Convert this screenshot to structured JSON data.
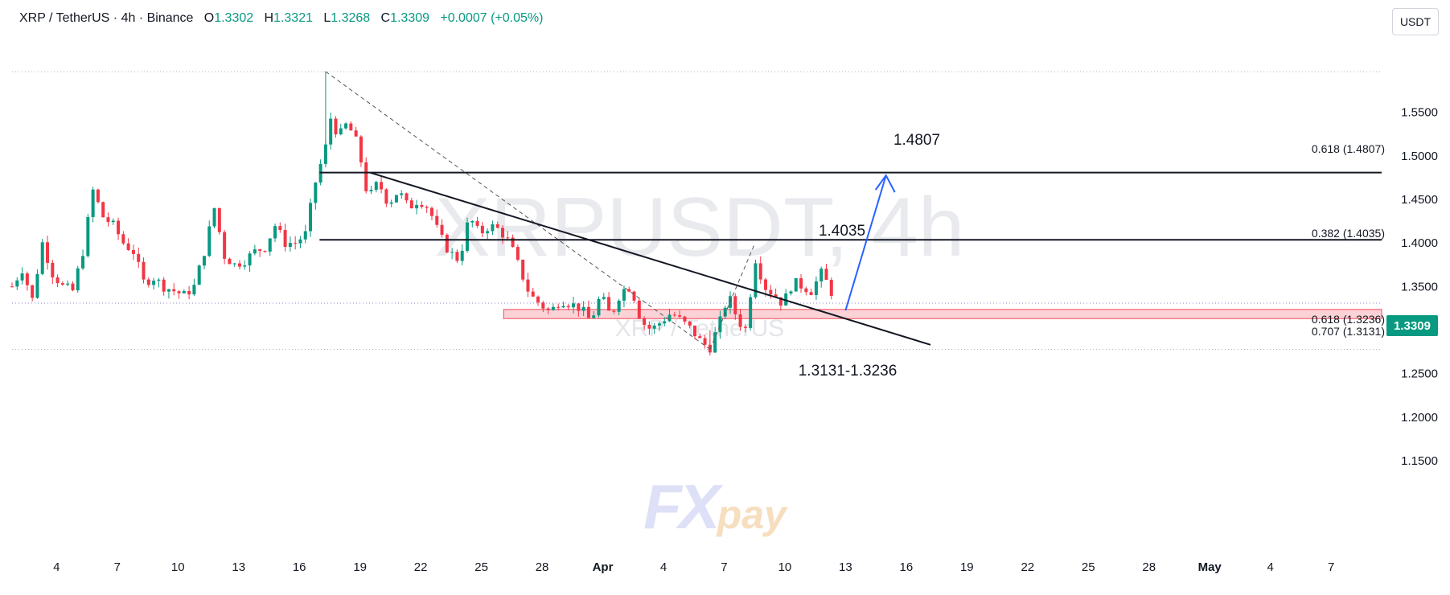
{
  "header": {
    "symbol": "XRP / TetherUS · 4h · Binance",
    "o_label": "O",
    "o_value": "1.3302",
    "h_label": "H",
    "h_value": "1.3321",
    "l_label": "L",
    "l_value": "1.3268",
    "c_label": "C",
    "c_value": "1.3309",
    "change": "+0.0007 (+0.05%)"
  },
  "currency_badge": "USDT",
  "last_price": "1.3309",
  "watermark": {
    "line1": "XRPUSDT, 4h",
    "line2": "XRP / TetherUS"
  },
  "logo": {
    "fx": "FX",
    "pay": "pay"
  },
  "colors": {
    "up": "#089981",
    "down": "#f23645",
    "zone": "#fbcfd3",
    "arrow": "#2962ff"
  },
  "chart_data": {
    "type": "candlestick",
    "y_ticks": [
      "1.1500",
      "1.2000",
      "1.2500",
      "1.3000",
      "1.3500",
      "1.4000",
      "1.4500",
      "1.5000",
      "1.5500"
    ],
    "ylim": [
      1.125,
      1.605
    ],
    "x_ticks": [
      "4",
      "7",
      "10",
      "13",
      "16",
      "19",
      "22",
      "25",
      "28",
      "Apr",
      "4",
      "7",
      "10",
      "13",
      "16",
      "19",
      "22",
      "25",
      "28",
      "May",
      "4",
      "7"
    ],
    "x_tick_days": [
      4,
      7,
      10,
      13,
      16,
      19,
      22,
      25,
      28,
      31,
      34,
      37,
      40,
      43,
      46,
      49,
      52,
      55,
      58,
      61,
      64,
      67
    ],
    "x_start_day": 1.8,
    "x_end_day": 69.5,
    "guide_lines": [
      1.3309,
      1.2778,
      1.5966
    ],
    "close_path": [
      [
        1.8,
        1.35
      ],
      [
        2.3,
        1.37
      ],
      [
        2.8,
        1.335
      ],
      [
        3.3,
        1.4
      ],
      [
        3.8,
        1.365
      ],
      [
        4.3,
        1.35
      ],
      [
        4.8,
        1.345
      ],
      [
        5.3,
        1.39
      ],
      [
        5.8,
        1.46
      ],
      [
        6.3,
        1.43
      ],
      [
        6.8,
        1.42
      ],
      [
        7.3,
        1.4
      ],
      [
        7.8,
        1.39
      ],
      [
        8.3,
        1.355
      ],
      [
        8.8,
        1.36
      ],
      [
        9.3,
        1.35
      ],
      [
        9.8,
        1.345
      ],
      [
        10.3,
        1.34
      ],
      [
        10.8,
        1.35
      ],
      [
        11.3,
        1.39
      ],
      [
        11.8,
        1.44
      ],
      [
        12.3,
        1.385
      ],
      [
        12.8,
        1.375
      ],
      [
        13.3,
        1.38
      ],
      [
        13.8,
        1.39
      ],
      [
        14.3,
        1.395
      ],
      [
        14.8,
        1.42
      ],
      [
        15.3,
        1.4
      ],
      [
        15.8,
        1.4
      ],
      [
        16.3,
        1.41
      ],
      [
        16.8,
        1.47
      ],
      [
        17.3,
        1.51
      ],
      [
        17.6,
        1.55
      ],
      [
        17.9,
        1.52
      ],
      [
        18.3,
        1.535
      ],
      [
        18.7,
        1.525
      ],
      [
        19.0,
        1.5
      ],
      [
        19.4,
        1.45
      ],
      [
        19.9,
        1.47
      ],
      [
        20.4,
        1.445
      ],
      [
        20.9,
        1.46
      ],
      [
        21.4,
        1.44
      ],
      [
        21.9,
        1.45
      ],
      [
        22.4,
        1.44
      ],
      [
        22.9,
        1.41
      ],
      [
        23.4,
        1.39
      ],
      [
        23.9,
        1.38
      ],
      [
        24.4,
        1.43
      ],
      [
        24.9,
        1.41
      ],
      [
        25.4,
        1.42
      ],
      [
        25.9,
        1.415
      ],
      [
        26.4,
        1.4
      ],
      [
        26.9,
        1.37
      ],
      [
        27.4,
        1.34
      ],
      [
        27.9,
        1.33
      ],
      [
        28.4,
        1.32
      ],
      [
        28.9,
        1.335
      ],
      [
        29.4,
        1.33
      ],
      [
        29.9,
        1.325
      ],
      [
        30.4,
        1.31
      ],
      [
        30.9,
        1.34
      ],
      [
        31.4,
        1.315
      ],
      [
        31.9,
        1.345
      ],
      [
        32.4,
        1.35
      ],
      [
        32.9,
        1.31
      ],
      [
        33.4,
        1.3
      ],
      [
        33.9,
        1.31
      ],
      [
        34.4,
        1.32
      ],
      [
        34.9,
        1.31
      ],
      [
        35.4,
        1.3
      ],
      [
        35.9,
        1.285
      ],
      [
        36.3,
        1.28
      ],
      [
        36.8,
        1.31
      ],
      [
        37.2,
        1.34
      ],
      [
        37.7,
        1.31
      ],
      [
        38.1,
        1.3
      ],
      [
        38.5,
        1.385
      ],
      [
        39.0,
        1.35
      ],
      [
        39.5,
        1.34
      ],
      [
        39.9,
        1.33
      ],
      [
        40.4,
        1.355
      ],
      [
        40.9,
        1.35
      ],
      [
        41.3,
        1.345
      ],
      [
        41.8,
        1.365
      ],
      [
        42.2,
        1.35
      ],
      [
        42.5,
        1.331
      ]
    ]
  },
  "annotations": {
    "target_high": "1.4807",
    "target_mid": "1.4035",
    "zone_label": "1.3131-1.3236",
    "fib_0618_top": "0.618 (1.4807)",
    "fib_0382": "0.382 (1.4035)",
    "fib_0618_low": "0.618 (1.3236)",
    "fib_0707": "0.707 (1.3131)"
  }
}
